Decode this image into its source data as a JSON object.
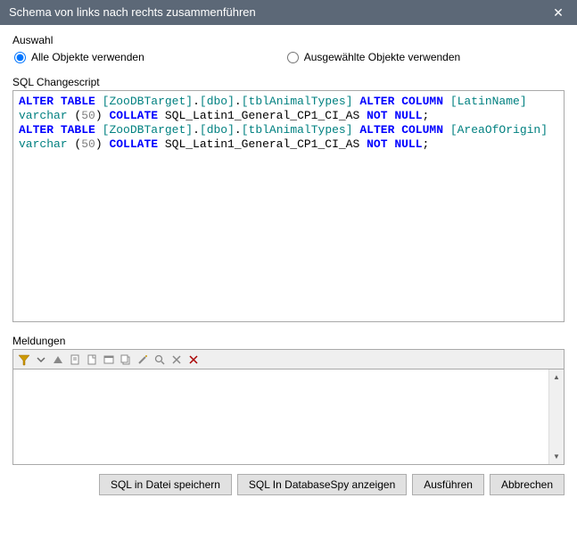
{
  "window": {
    "title": "Schema von links nach rechts zusammenführen",
    "close_glyph": "✕"
  },
  "auswahl": {
    "legend": "Auswahl",
    "opt_all": "Alle Objekte verwenden",
    "opt_selected": "Ausgewählte Objekte verwenden",
    "value": "all"
  },
  "sql": {
    "legend": "SQL Changescript",
    "tokens": [
      {
        "t": "kw",
        "v": "ALTER"
      },
      {
        "t": "plain",
        "v": " "
      },
      {
        "t": "kw",
        "v": "TABLE"
      },
      {
        "t": "plain",
        "v": " "
      },
      {
        "t": "obj",
        "v": "[ZooDBTarget]"
      },
      {
        "t": "plain",
        "v": "."
      },
      {
        "t": "obj",
        "v": "[dbo]"
      },
      {
        "t": "plain",
        "v": "."
      },
      {
        "t": "obj",
        "v": "[tblAnimalTypes]"
      },
      {
        "t": "plain",
        "v": " "
      },
      {
        "t": "kw",
        "v": "ALTER"
      },
      {
        "t": "plain",
        "v": " "
      },
      {
        "t": "kw",
        "v": "COLUMN"
      },
      {
        "t": "plain",
        "v": " "
      },
      {
        "t": "obj",
        "v": "[LatinName]"
      },
      {
        "t": "plain",
        "v": " "
      },
      {
        "t": "dtype",
        "v": "varchar"
      },
      {
        "t": "plain",
        "v": " ("
      },
      {
        "t": "num",
        "v": "50"
      },
      {
        "t": "plain",
        "v": ") "
      },
      {
        "t": "kw",
        "v": "COLLATE"
      },
      {
        "t": "plain",
        "v": " SQL_Latin1_General_CP1_CI_AS "
      },
      {
        "t": "kw",
        "v": "NOT"
      },
      {
        "t": "plain",
        "v": " "
      },
      {
        "t": "kw",
        "v": "NULL"
      },
      {
        "t": "plain",
        "v": ";\n"
      },
      {
        "t": "kw",
        "v": "ALTER"
      },
      {
        "t": "plain",
        "v": " "
      },
      {
        "t": "kw",
        "v": "TABLE"
      },
      {
        "t": "plain",
        "v": " "
      },
      {
        "t": "obj",
        "v": "[ZooDBTarget]"
      },
      {
        "t": "plain",
        "v": "."
      },
      {
        "t": "obj",
        "v": "[dbo]"
      },
      {
        "t": "plain",
        "v": "."
      },
      {
        "t": "obj",
        "v": "[tblAnimalTypes]"
      },
      {
        "t": "plain",
        "v": " "
      },
      {
        "t": "kw",
        "v": "ALTER"
      },
      {
        "t": "plain",
        "v": " "
      },
      {
        "t": "kw",
        "v": "COLUMN"
      },
      {
        "t": "plain",
        "v": " "
      },
      {
        "t": "obj",
        "v": "[AreaOfOrigin]"
      },
      {
        "t": "plain",
        "v": " "
      },
      {
        "t": "dtype",
        "v": "varchar"
      },
      {
        "t": "plain",
        "v": " ("
      },
      {
        "t": "num",
        "v": "50"
      },
      {
        "t": "plain",
        "v": ") "
      },
      {
        "t": "kw",
        "v": "COLLATE"
      },
      {
        "t": "plain",
        "v": " SQL_Latin1_General_CP1_CI_AS "
      },
      {
        "t": "kw",
        "v": "NOT"
      },
      {
        "t": "plain",
        "v": " "
      },
      {
        "t": "kw",
        "v": "NULL"
      },
      {
        "t": "plain",
        "v": ";"
      }
    ]
  },
  "meldungen": {
    "legend": "Meldungen",
    "toolbar_icons": [
      "filter-icon",
      "chevron-down-icon",
      "triangle-up-icon",
      "doc-icon",
      "page-icon",
      "nav-icon",
      "copy-icon",
      "wand-icon",
      "find-icon",
      "stop-icon",
      "clear-icon"
    ]
  },
  "buttons": {
    "save": "SQL in Datei speichern",
    "show": "SQL In DatabaseSpy anzeigen",
    "exec": "Ausführen",
    "cancel": "Abbrechen"
  }
}
